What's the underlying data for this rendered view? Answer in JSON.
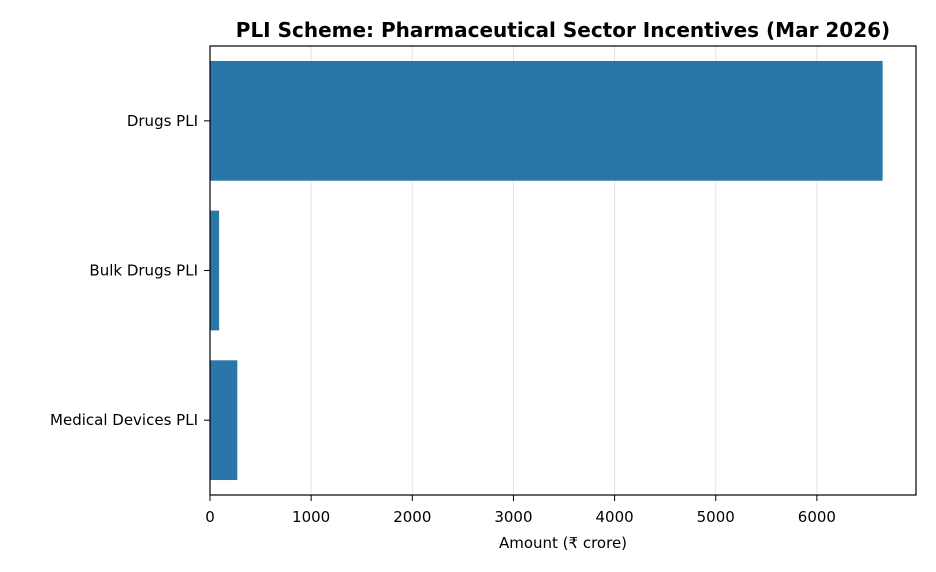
{
  "chart_data": {
    "type": "bar",
    "orientation": "horizontal",
    "title": "PLI Scheme: Pharmaceutical Sector Incentives (Mar 2026)",
    "xlabel": "Amount (₹ crore)",
    "ylabel": "",
    "categories": [
      "Drugs PLI",
      "Bulk Drugs PLI",
      "Medical Devices PLI"
    ],
    "values": [
      6650,
      90,
      270
    ],
    "xlim": [
      0,
      6980
    ],
    "xticks": [
      "0",
      "1000",
      "2000",
      "3000",
      "4000",
      "5000",
      "6000"
    ],
    "grid": "vertical",
    "legend": "none",
    "colors": {
      "bar": "#2a76a8",
      "grid": "#e3e3e3",
      "axis": "#000000"
    }
  }
}
